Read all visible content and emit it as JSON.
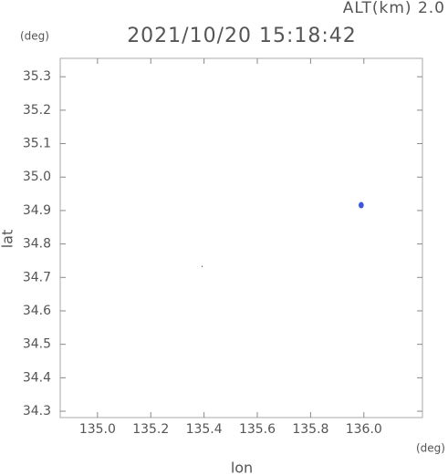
{
  "chart_data": {
    "type": "scatter",
    "title": "2021/10/20 15:18:42",
    "subtitle": "ALT(km) 2.0",
    "x_label": "lon",
    "y_label": "lat",
    "x_unit": "(deg)",
    "y_unit": "(deg)",
    "x": [
      135.393,
      135.99
    ],
    "values": [
      34.733,
      34.916
    ],
    "colors": [
      "#000000",
      "#3a55e0"
    ],
    "xlim": [
      134.86,
      136.22
    ],
    "ylim": [
      34.281,
      35.355
    ],
    "xticks": [
      {
        "value": 135.0,
        "label": "135.0"
      },
      {
        "value": 135.2,
        "label": "135.2"
      },
      {
        "value": 135.4,
        "label": "135.4"
      },
      {
        "value": 135.6,
        "label": "135.6"
      },
      {
        "value": 135.8,
        "label": "135.8"
      },
      {
        "value": 136.0,
        "label": "136.0"
      }
    ],
    "yticks": [
      34.3,
      34.4,
      34.5,
      34.6,
      34.7,
      34.8,
      34.9,
      {
        "value": 35.0,
        "label": "35.0"
      },
      35.1,
      35.2,
      35.3
    ],
    "grid": false
  }
}
